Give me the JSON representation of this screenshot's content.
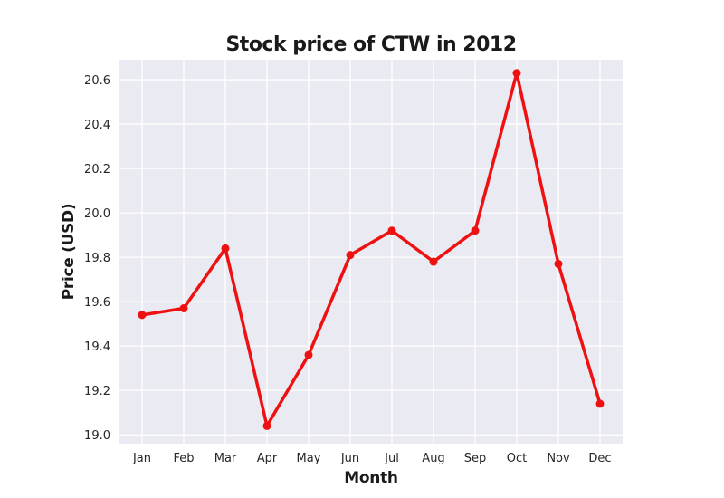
{
  "chart_data": {
    "type": "line",
    "title": "Stock price of CTW in 2012",
    "xlabel": "Month",
    "ylabel": "Price (USD)",
    "categories": [
      "Jan",
      "Feb",
      "Mar",
      "Apr",
      "May",
      "Jun",
      "Jul",
      "Aug",
      "Sep",
      "Oct",
      "Nov",
      "Dec"
    ],
    "series": [
      {
        "values": [
          19.54,
          19.57,
          19.84,
          19.04,
          19.36,
          19.81,
          19.92,
          19.78,
          19.92,
          20.63,
          19.77,
          19.14
        ]
      }
    ],
    "yticks": [
      "19.0",
      "19.2",
      "19.4",
      "19.6",
      "19.8",
      "20.0",
      "20.2",
      "20.4",
      "20.6"
    ],
    "ylim": [
      18.96,
      20.69
    ],
    "grid": true,
    "colors": {
      "line": "#ee1111",
      "plot_background": "#eaeaf2",
      "grid": "#ffffff"
    }
  }
}
